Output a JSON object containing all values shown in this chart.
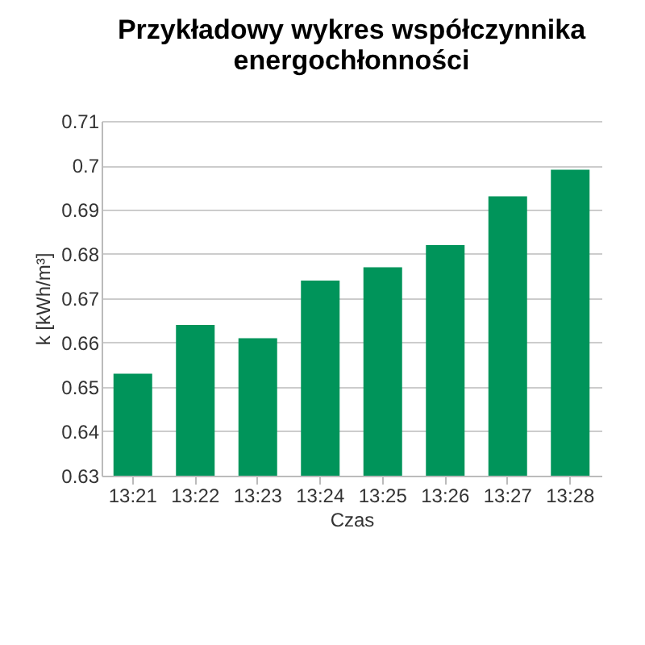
{
  "chart_data": {
    "type": "bar",
    "title": "Przykładowy wykres współczynnika energochłonności",
    "xlabel": "Czas",
    "ylabel": "k [kWh/m³]",
    "categories": [
      "13:21",
      "13:22",
      "13:23",
      "13:24",
      "13:25",
      "13:26",
      "13:27",
      "13:28"
    ],
    "values": [
      0.653,
      0.664,
      0.661,
      0.674,
      0.677,
      0.682,
      0.693,
      0.699
    ],
    "color": "#00945a",
    "ylim": [
      0.63,
      0.71
    ],
    "yticks": [
      0.63,
      0.64,
      0.65,
      0.66,
      0.67,
      0.68,
      0.69,
      0.7,
      0.71
    ],
    "grid": "y"
  }
}
